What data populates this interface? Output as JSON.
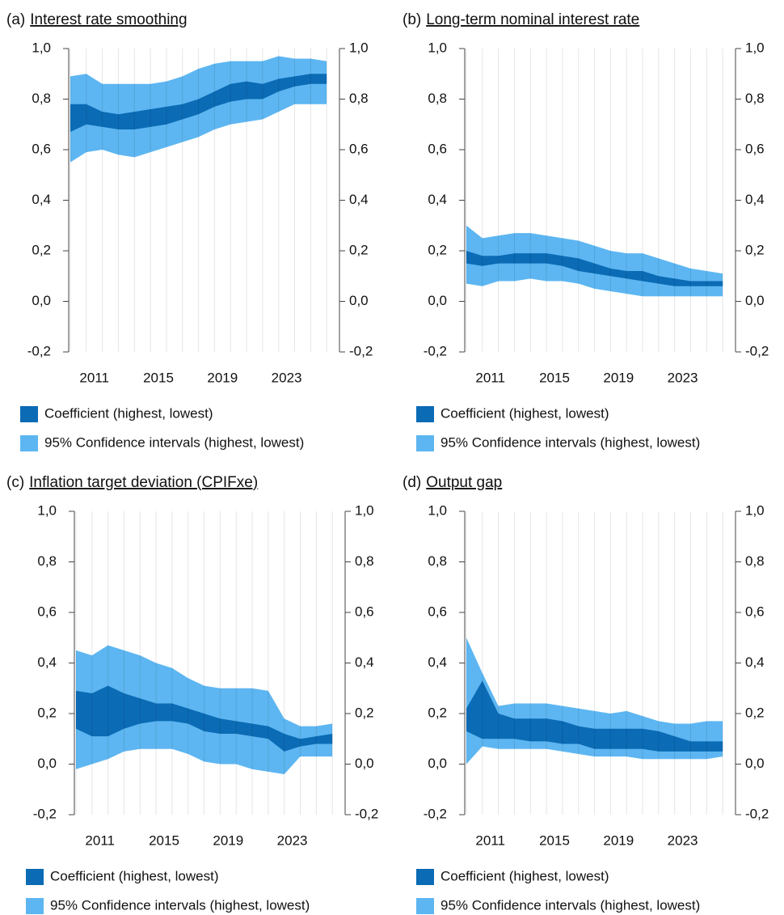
{
  "chart_data": [
    {
      "type": "range_area",
      "panel": "(a)",
      "title": "Interest rate smoothing",
      "x": [
        2009.5,
        2010.5,
        2011.5,
        2012.5,
        2013.5,
        2014.5,
        2015.5,
        2016.5,
        2017.5,
        2018.5,
        2019.5,
        2020.5,
        2021.5,
        2022.5,
        2023.5,
        2024.5,
        2025.5
      ],
      "xlim": [
        2009.4,
        2026.3
      ],
      "xticks": [
        2011,
        2015,
        2019,
        2023
      ],
      "xgrid": true,
      "ylim": [
        -0.2,
        1.0
      ],
      "yticks": [
        {
          "value": -0.2,
          "label": "-0,2"
        },
        {
          "value": 0,
          "label": "0,0"
        },
        {
          "value": 0.2,
          "label": "0,2"
        },
        {
          "value": 0.4,
          "label": "0,4"
        },
        {
          "value": 0.6,
          "label": "0,6"
        },
        {
          "value": 0.8,
          "label": "0,8"
        },
        {
          "value": 1.0,
          "label": "1,0"
        }
      ],
      "series": [
        {
          "name": "Coefficient (highest, lowest)",
          "color": "#0b6bb5",
          "high": [
            0.78,
            0.78,
            0.75,
            0.74,
            0.75,
            0.76,
            0.77,
            0.78,
            0.8,
            0.83,
            0.86,
            0.87,
            0.86,
            0.88,
            0.89,
            0.9,
            0.9
          ],
          "low": [
            0.67,
            0.7,
            0.69,
            0.68,
            0.68,
            0.69,
            0.7,
            0.72,
            0.74,
            0.77,
            0.79,
            0.8,
            0.8,
            0.83,
            0.85,
            0.86,
            0.86
          ]
        },
        {
          "name": "95% Confidence intervals (highest, lowest)",
          "color": "#5db6f1",
          "high": [
            0.89,
            0.9,
            0.86,
            0.86,
            0.86,
            0.86,
            0.87,
            0.89,
            0.92,
            0.94,
            0.95,
            0.95,
            0.95,
            0.97,
            0.96,
            0.96,
            0.95
          ],
          "low": [
            0.55,
            0.59,
            0.6,
            0.58,
            0.57,
            0.59,
            0.61,
            0.63,
            0.65,
            0.68,
            0.7,
            0.71,
            0.72,
            0.75,
            0.78,
            0.78,
            0.78
          ]
        }
      ]
    },
    {
      "type": "range_area",
      "panel": "(b)",
      "title": "Long-term nominal interest rate",
      "x": [
        2009.5,
        2010.5,
        2011.5,
        2012.5,
        2013.5,
        2014.5,
        2015.5,
        2016.5,
        2017.5,
        2018.5,
        2019.5,
        2020.5,
        2021.5,
        2022.5,
        2023.5,
        2024.5,
        2025.5
      ],
      "xlim": [
        2009.4,
        2026.3
      ],
      "xticks": [
        2011,
        2015,
        2019,
        2023
      ],
      "xgrid": true,
      "ylim": [
        -0.2,
        1.0
      ],
      "yticks": [
        {
          "value": -0.2,
          "label": "-0,2"
        },
        {
          "value": 0,
          "label": "0,0"
        },
        {
          "value": 0.2,
          "label": "0,2"
        },
        {
          "value": 0.4,
          "label": "0,4"
        },
        {
          "value": 0.6,
          "label": "0,6"
        },
        {
          "value": 0.8,
          "label": "0,8"
        },
        {
          "value": 1.0,
          "label": "1,0"
        }
      ],
      "series": [
        {
          "name": "Coefficient (highest, lowest)",
          "color": "#0b6bb5",
          "high": [
            0.2,
            0.18,
            0.18,
            0.19,
            0.19,
            0.19,
            0.18,
            0.17,
            0.15,
            0.13,
            0.12,
            0.12,
            0.1,
            0.09,
            0.08,
            0.08,
            0.08
          ],
          "low": [
            0.15,
            0.14,
            0.15,
            0.15,
            0.15,
            0.15,
            0.14,
            0.12,
            0.11,
            0.1,
            0.09,
            0.08,
            0.07,
            0.06,
            0.06,
            0.06,
            0.06
          ]
        },
        {
          "name": "95% Confidence intervals (highest, lowest)",
          "color": "#5db6f1",
          "high": [
            0.3,
            0.25,
            0.26,
            0.27,
            0.27,
            0.26,
            0.25,
            0.24,
            0.22,
            0.2,
            0.19,
            0.19,
            0.17,
            0.15,
            0.13,
            0.12,
            0.11
          ],
          "low": [
            0.07,
            0.06,
            0.08,
            0.08,
            0.09,
            0.08,
            0.08,
            0.07,
            0.05,
            0.04,
            0.03,
            0.02,
            0.02,
            0.02,
            0.02,
            0.02,
            0.02
          ]
        }
      ]
    },
    {
      "type": "range_area",
      "panel": "(c)",
      "title": "Inflation target deviation (CPIFxe)",
      "x": [
        2009.5,
        2010.5,
        2011.5,
        2012.5,
        2013.5,
        2014.5,
        2015.5,
        2016.5,
        2017.5,
        2018.5,
        2019.5,
        2020.5,
        2021.5,
        2022.5,
        2023.5,
        2024.5,
        2025.5
      ],
      "xlim": [
        2009.4,
        2026.3
      ],
      "xticks": [
        2011,
        2015,
        2019,
        2023
      ],
      "xgrid": true,
      "ylim": [
        -0.2,
        1.0
      ],
      "yticks": [
        {
          "value": -0.2,
          "label": "-0,2"
        },
        {
          "value": 0,
          "label": "0,0"
        },
        {
          "value": 0.2,
          "label": "0,2"
        },
        {
          "value": 0.4,
          "label": "0,4"
        },
        {
          "value": 0.6,
          "label": "0,6"
        },
        {
          "value": 0.8,
          "label": "0,8"
        },
        {
          "value": 1.0,
          "label": "1,0"
        }
      ],
      "series": [
        {
          "name": "Coefficient (highest, lowest)",
          "color": "#0b6bb5",
          "high": [
            0.29,
            0.28,
            0.31,
            0.28,
            0.26,
            0.24,
            0.24,
            0.22,
            0.2,
            0.18,
            0.17,
            0.16,
            0.15,
            0.12,
            0.1,
            0.11,
            0.12
          ],
          "low": [
            0.14,
            0.11,
            0.11,
            0.14,
            0.16,
            0.17,
            0.17,
            0.16,
            0.13,
            0.12,
            0.12,
            0.11,
            0.1,
            0.05,
            0.07,
            0.08,
            0.08
          ]
        },
        {
          "name": "95% Confidence intervals (highest, lowest)",
          "color": "#5db6f1",
          "high": [
            0.45,
            0.43,
            0.47,
            0.45,
            0.43,
            0.4,
            0.38,
            0.34,
            0.31,
            0.3,
            0.3,
            0.3,
            0.29,
            0.18,
            0.15,
            0.15,
            0.16
          ],
          "low": [
            -0.02,
            0.0,
            0.02,
            0.05,
            0.06,
            0.06,
            0.06,
            0.04,
            0.01,
            0.0,
            0.0,
            -0.02,
            -0.03,
            -0.04,
            0.03,
            0.03,
            0.03
          ]
        }
      ]
    },
    {
      "type": "range_area",
      "panel": "(d)",
      "title": "Output gap",
      "x": [
        2009.5,
        2010.5,
        2011.5,
        2012.5,
        2013.5,
        2014.5,
        2015.5,
        2016.5,
        2017.5,
        2018.5,
        2019.5,
        2020.5,
        2021.5,
        2022.5,
        2023.5,
        2024.5,
        2025.5
      ],
      "xlim": [
        2009.4,
        2026.3
      ],
      "xticks": [
        2011,
        2015,
        2019,
        2023
      ],
      "xgrid": true,
      "ylim": [
        -0.2,
        1.0
      ],
      "yticks": [
        {
          "value": -0.2,
          "label": "-0,2"
        },
        {
          "value": 0,
          "label": "0,0"
        },
        {
          "value": 0.2,
          "label": "0,2"
        },
        {
          "value": 0.4,
          "label": "0,4"
        },
        {
          "value": 0.6,
          "label": "0,6"
        },
        {
          "value": 0.8,
          "label": "0,8"
        },
        {
          "value": 1.0,
          "label": "1,0"
        }
      ],
      "series": [
        {
          "name": "Coefficient (highest, lowest)",
          "color": "#0b6bb5",
          "high": [
            0.22,
            0.33,
            0.2,
            0.18,
            0.18,
            0.18,
            0.17,
            0.15,
            0.14,
            0.14,
            0.14,
            0.14,
            0.13,
            0.11,
            0.09,
            0.09,
            0.09
          ],
          "low": [
            0.13,
            0.1,
            0.1,
            0.1,
            0.09,
            0.09,
            0.08,
            0.08,
            0.06,
            0.06,
            0.06,
            0.06,
            0.05,
            0.05,
            0.05,
            0.05,
            0.05
          ]
        },
        {
          "name": "95% Confidence intervals (highest, lowest)",
          "color": "#5db6f1",
          "high": [
            0.5,
            0.36,
            0.23,
            0.24,
            0.24,
            0.24,
            0.23,
            0.22,
            0.21,
            0.2,
            0.21,
            0.19,
            0.17,
            0.16,
            0.16,
            0.17,
            0.17
          ],
          "low": [
            0.0,
            0.07,
            0.06,
            0.06,
            0.06,
            0.06,
            0.05,
            0.04,
            0.03,
            0.03,
            0.03,
            0.02,
            0.02,
            0.02,
            0.02,
            0.02,
            0.03
          ]
        }
      ]
    }
  ]
}
